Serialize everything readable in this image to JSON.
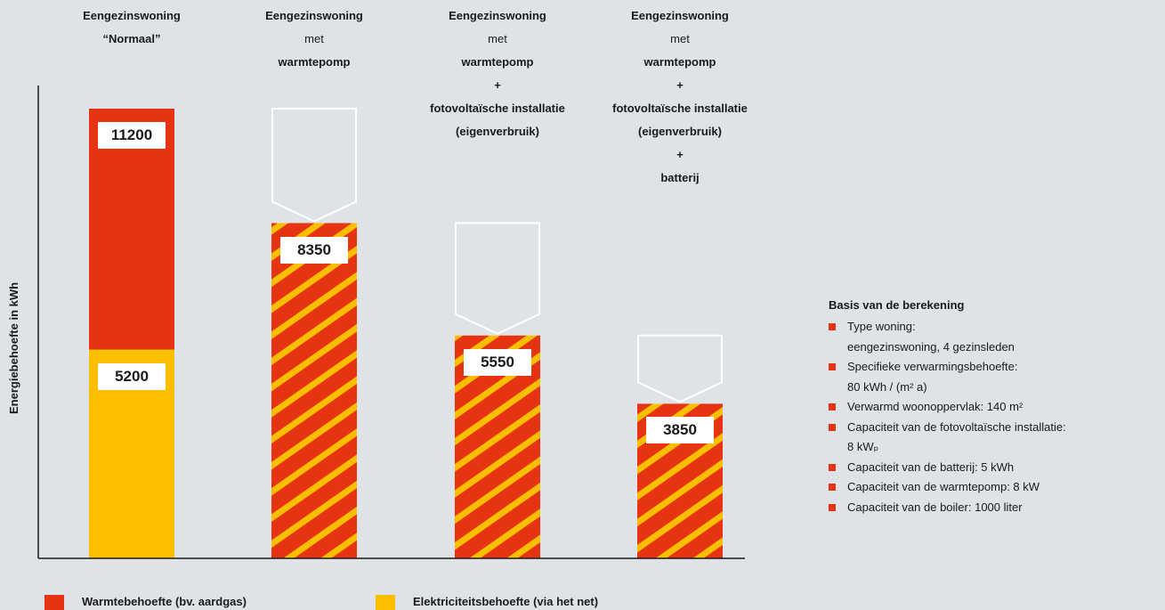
{
  "chart_data": {
    "type": "bar",
    "ylabel": "Energiebehoefte in kWh",
    "categories": [
      [
        "Eengezinswoning",
        "“Normaal”"
      ],
      [
        "Eengezinswoning",
        "met",
        "warmtepomp"
      ],
      [
        "Eengezinswoning",
        "met",
        "warmtepomp",
        "+",
        "fotovoltaïsche installatie",
        "(eigenverbruik)"
      ],
      [
        "Eengezinswoning",
        "met",
        "warmtepomp",
        "+",
        "fotovoltaïsche installatie",
        "(eigenverbruik)",
        "+",
        "batterij"
      ]
    ],
    "bars": [
      {
        "total": 11200,
        "heat": 6000,
        "electricity": 5200,
        "labels": [
          "11200",
          "5200"
        ]
      },
      {
        "total": 8350,
        "combined": 8350,
        "labels": [
          "8350"
        ]
      },
      {
        "total": 5550,
        "combined": 5550,
        "labels": [
          "5550"
        ]
      },
      {
        "total": 3850,
        "combined": 3850,
        "labels": [
          "3850"
        ]
      }
    ],
    "ylim": [
      0,
      11200
    ],
    "legend": [
      {
        "label": "Warmtebehoefte (bv. aardgas)",
        "color": "#e63312"
      },
      {
        "label": "Elektriciteitsbehoefte (via het net)",
        "color": "#fbbf00"
      }
    ]
  },
  "basis": {
    "title": "Basis van de berekening",
    "items": [
      [
        "Type woning:",
        "eengezinswoning, 4 gezinsleden"
      ],
      [
        "Specifieke verwarmingsbehoefte:",
        "80 kWh / (m² a)"
      ],
      [
        "Verwarmd woonoppervlak: 140 m²"
      ],
      [
        "Capaciteit van de fotovoltaïsche installatie:",
        "8 kWₚ"
      ],
      [
        "Capaciteit van de batterij: 5 kWh"
      ],
      [
        "Capaciteit van de warmtepomp: 8 kW"
      ],
      [
        "Capaciteit van de boiler: 1000 liter"
      ]
    ]
  },
  "colors": {
    "heat": "#e63312",
    "electricity": "#fbbf00",
    "background": "#dfe3e8",
    "axis": "#1a1a1a"
  }
}
